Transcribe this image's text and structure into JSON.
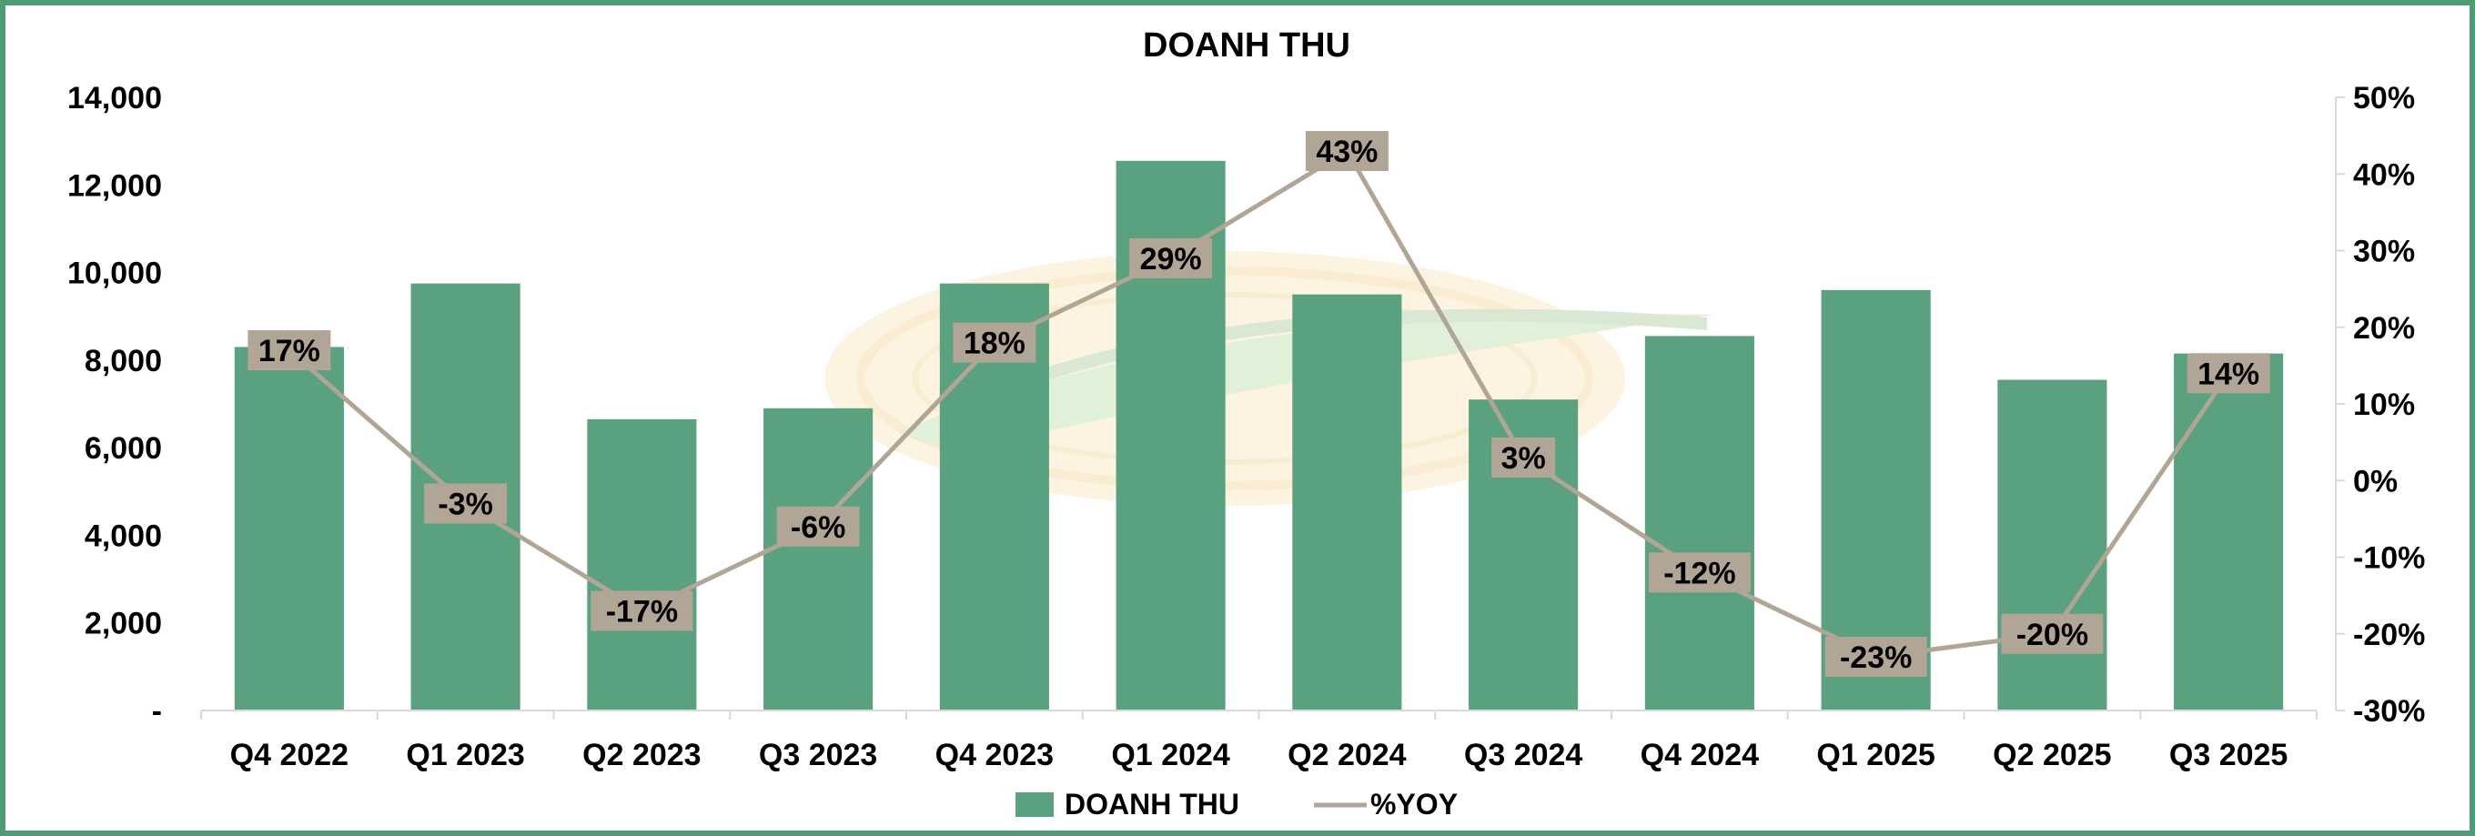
{
  "chart_data": {
    "type": "bar",
    "title": "DOANH THU",
    "categories": [
      "Q4 2022",
      "Q1 2023",
      "Q2 2023",
      "Q3 2023",
      "Q4 2023",
      "Q1 2024",
      "Q2 2024",
      "Q3 2024",
      "Q4 2024",
      "Q1 2025",
      "Q2 2025",
      "Q3 2025"
    ],
    "series": [
      {
        "name": "DOANH THU",
        "type": "bar",
        "axis": "left",
        "values": [
          8300,
          9750,
          6650,
          6900,
          9750,
          12550,
          9500,
          7100,
          8550,
          9600,
          7550,
          8150
        ]
      },
      {
        "name": "%YOY",
        "type": "line",
        "axis": "right",
        "values": [
          17,
          -3,
          -17,
          -6,
          18,
          29,
          43,
          3,
          -12,
          -23,
          -20,
          14
        ],
        "labels": [
          "17%",
          "-3%",
          "-17%",
          "-6%",
          "18%",
          "29%",
          "43%",
          "3%",
          "-12%",
          "-23%",
          "-20%",
          "14%"
        ]
      }
    ],
    "y_left": {
      "range": [
        0,
        14000
      ],
      "ticks": [
        0,
        2000,
        4000,
        6000,
        8000,
        10000,
        12000,
        14000
      ],
      "tick_labels": [
        "-",
        "2,000",
        "4,000",
        "6,000",
        "8,000",
        "10,000",
        "12,000",
        "14,000"
      ]
    },
    "y_right": {
      "range": [
        -30,
        50
      ],
      "ticks": [
        -30,
        -20,
        -10,
        0,
        10,
        20,
        30,
        40,
        50
      ],
      "tick_labels": [
        "-30%",
        "-20%",
        "-10%",
        "0%",
        "10%",
        "20%",
        "30%",
        "40%",
        "50%"
      ]
    },
    "grid": false,
    "legend": {
      "position": "bottom",
      "entries": [
        "DOANH THU",
        "%YOY"
      ]
    },
    "colors": {
      "bar": "#5aa17f",
      "line": "#b1a595",
      "label_box": "#b1a595",
      "frame": "#4e9a73",
      "axis": "#d9d9d9",
      "text": "#000000"
    }
  }
}
